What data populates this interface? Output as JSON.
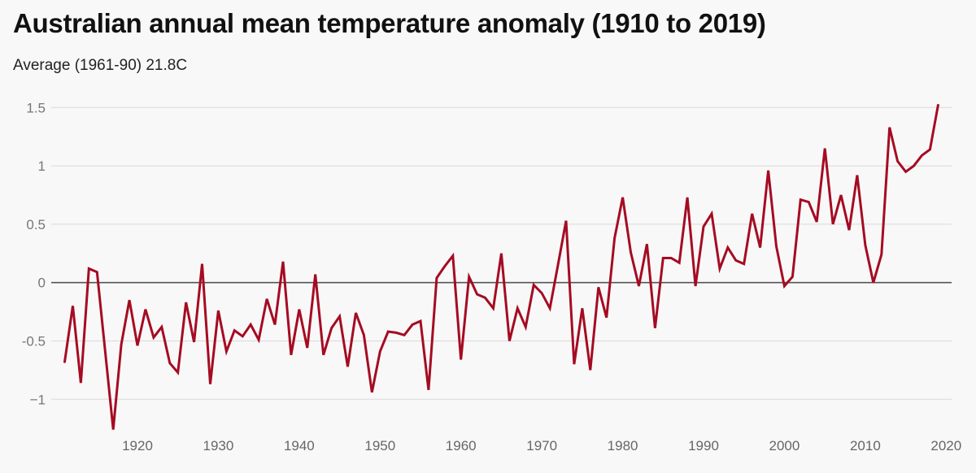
{
  "chart_data": {
    "type": "line",
    "title": "Australian annual mean temperature anomaly (1910 to 2019)",
    "subtitle": "Average (1961-90) 21.8C",
    "xlabel": "",
    "ylabel": "",
    "xlim": [
      1910,
      2020
    ],
    "ylim": [
      -1.25,
      1.6
    ],
    "grid": true,
    "legend": "none",
    "yticks": [
      1.5,
      1,
      0.5,
      0,
      -0.5,
      -1
    ],
    "ytick_labels": [
      "1.5",
      "1",
      "0.5",
      "0",
      "-0.5",
      "−1"
    ],
    "xticks": [
      1920,
      1930,
      1940,
      1950,
      1960,
      1970,
      1980,
      1990,
      2000,
      2010,
      2020
    ],
    "xtick_labels": [
      "1920",
      "1930",
      "1940",
      "1950",
      "1960",
      "1970",
      "1980",
      "1990",
      "2000",
      "2010",
      "2020"
    ],
    "series": [
      {
        "name": "Temperature anomaly",
        "color": "#a50b22",
        "x_start": 1911,
        "values": [
          -0.68,
          -0.2,
          -0.86,
          0.12,
          0.09,
          -0.58,
          -1.26,
          -0.53,
          -0.15,
          -0.54,
          -0.23,
          -0.47,
          -0.38,
          -0.69,
          -0.77,
          -0.17,
          -0.51,
          0.16,
          -0.87,
          -0.24,
          -0.59,
          -0.41,
          -0.46,
          -0.36,
          -0.49,
          -0.14,
          -0.36,
          0.18,
          -0.62,
          -0.23,
          -0.56,
          0.07,
          -0.62,
          -0.39,
          -0.29,
          -0.72,
          -0.26,
          -0.45,
          -0.94,
          -0.59,
          -0.42,
          -0.43,
          -0.45,
          -0.36,
          -0.33,
          -0.92,
          0.04,
          0.14,
          0.23,
          -0.66,
          0.05,
          -0.1,
          -0.13,
          -0.22,
          0.25,
          -0.5,
          -0.22,
          -0.38,
          -0.02,
          -0.09,
          -0.22,
          0.15,
          0.53,
          -0.7,
          -0.22,
          -0.75,
          -0.04,
          -0.3,
          0.38,
          0.73,
          0.26,
          -0.03,
          0.33,
          -0.39,
          0.21,
          0.21,
          0.17,
          0.73,
          -0.03,
          0.48,
          0.59,
          0.12,
          0.3,
          0.19,
          0.16,
          0.59,
          0.3,
          0.96,
          0.31,
          -0.03,
          0.05,
          0.71,
          0.69,
          0.52,
          1.15,
          0.5,
          0.75,
          0.45,
          0.92,
          0.32,
          0.0,
          0.24,
          1.33,
          1.04,
          0.95,
          1.0,
          1.09,
          1.14,
          1.52
        ]
      }
    ],
    "colors": {
      "line": "#a50b22",
      "zero_line": "#555555",
      "grid": "#d9d9d9",
      "background": "#f8f8f8"
    }
  }
}
